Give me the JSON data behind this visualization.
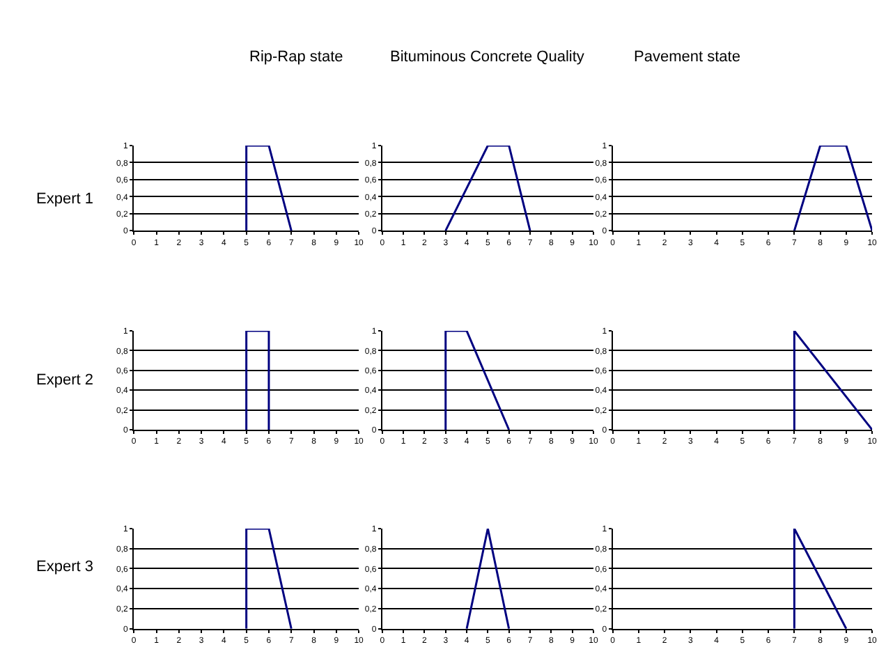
{
  "chart_data": [
    {
      "type": "line",
      "title": "Rip-Rap state",
      "ylabel": "Expert 1",
      "x": [
        5,
        5,
        6,
        7
      ],
      "values": [
        0,
        1,
        1,
        0
      ],
      "color": "#000080",
      "xlim": [
        0,
        10
      ],
      "ylim": [
        0,
        1
      ],
      "xticks": [
        0,
        1,
        2,
        3,
        4,
        5,
        6,
        7,
        8,
        9,
        10
      ],
      "yticks": [
        0,
        {
          "value": 0.2,
          "label": "0,2"
        },
        {
          "value": 0.4,
          "label": "0,4"
        },
        {
          "value": 0.6,
          "label": "0,6"
        },
        {
          "value": 0.8,
          "label": "0,8"
        },
        1
      ],
      "grid": "y",
      "marker": "none",
      "line_style": "solid"
    },
    {
      "type": "line",
      "title": "Bituminous Concrete Quality",
      "x": [
        3,
        5,
        6,
        7
      ],
      "values": [
        0,
        1,
        1,
        0
      ],
      "color": "#000080",
      "xlim": [
        0,
        10
      ],
      "ylim": [
        0,
        1
      ],
      "xticks": [
        0,
        1,
        2,
        3,
        4,
        5,
        6,
        7,
        8,
        9,
        10
      ],
      "yticks": [
        0,
        {
          "value": 0.2,
          "label": "0,2"
        },
        {
          "value": 0.4,
          "label": "0,4"
        },
        {
          "value": 0.6,
          "label": "0,6"
        },
        {
          "value": 0.8,
          "label": "0,8"
        },
        1
      ],
      "grid": "y",
      "marker": "none",
      "line_style": "solid"
    },
    {
      "type": "line",
      "title": "Pavement state",
      "x": [
        7,
        8,
        9,
        10
      ],
      "values": [
        0,
        1,
        1,
        0
      ],
      "color": "#000080",
      "xlim": [
        0,
        10
      ],
      "ylim": [
        0,
        1
      ],
      "xticks": [
        0,
        1,
        2,
        3,
        4,
        5,
        6,
        7,
        8,
        9,
        10
      ],
      "yticks": [
        0,
        {
          "value": 0.2,
          "label": "0,2"
        },
        {
          "value": 0.4,
          "label": "0,4"
        },
        {
          "value": 0.6,
          "label": "0,6"
        },
        {
          "value": 0.8,
          "label": "0,8"
        },
        1
      ],
      "grid": "y",
      "marker": "none",
      "line_style": "solid"
    },
    {
      "type": "line",
      "ylabel": "Expert 2",
      "x": [
        5,
        5,
        6,
        6
      ],
      "values": [
        0,
        1,
        1,
        0
      ],
      "color": "#000080",
      "xlim": [
        0,
        10
      ],
      "ylim": [
        0,
        1
      ],
      "xticks": [
        0,
        1,
        2,
        3,
        4,
        5,
        6,
        7,
        8,
        9,
        10
      ],
      "yticks": [
        0,
        {
          "value": 0.2,
          "label": "0,2"
        },
        {
          "value": 0.4,
          "label": "0,4"
        },
        {
          "value": 0.6,
          "label": "0,6"
        },
        {
          "value": 0.8,
          "label": "0,8"
        },
        1
      ],
      "grid": "y",
      "marker": "none",
      "line_style": "solid"
    },
    {
      "type": "line",
      "x": [
        3,
        3,
        4,
        6
      ],
      "values": [
        0,
        1,
        1,
        0
      ],
      "color": "#000080",
      "xlim": [
        0,
        10
      ],
      "ylim": [
        0,
        1
      ],
      "xticks": [
        0,
        1,
        2,
        3,
        4,
        5,
        6,
        7,
        8,
        9,
        10
      ],
      "yticks": [
        0,
        {
          "value": 0.2,
          "label": "0,2"
        },
        {
          "value": 0.4,
          "label": "0,4"
        },
        {
          "value": 0.6,
          "label": "0,6"
        },
        {
          "value": 0.8,
          "label": "0,8"
        },
        1
      ],
      "grid": "y",
      "marker": "none",
      "line_style": "solid"
    },
    {
      "type": "line",
      "x": [
        7,
        7,
        10
      ],
      "values": [
        0,
        1,
        0
      ],
      "color": "#000080",
      "xlim": [
        0,
        10
      ],
      "ylim": [
        0,
        1
      ],
      "xticks": [
        0,
        1,
        2,
        3,
        4,
        5,
        6,
        7,
        8,
        9,
        10
      ],
      "yticks": [
        0,
        {
          "value": 0.2,
          "label": "0,2"
        },
        {
          "value": 0.4,
          "label": "0,4"
        },
        {
          "value": 0.6,
          "label": "0,6"
        },
        {
          "value": 0.8,
          "label": "0,8"
        },
        1
      ],
      "grid": "y",
      "marker": "none",
      "line_style": "solid"
    },
    {
      "type": "line",
      "ylabel": "Expert 3",
      "x": [
        5,
        5,
        6,
        7
      ],
      "values": [
        0,
        1,
        1,
        0
      ],
      "color": "#000080",
      "xlim": [
        0,
        10
      ],
      "ylim": [
        0,
        1
      ],
      "xticks": [
        0,
        1,
        2,
        3,
        4,
        5,
        6,
        7,
        8,
        9,
        10
      ],
      "yticks": [
        0,
        {
          "value": 0.2,
          "label": "0,2"
        },
        {
          "value": 0.4,
          "label": "0,4"
        },
        {
          "value": 0.6,
          "label": "0,6"
        },
        {
          "value": 0.8,
          "label": "0,8"
        },
        1
      ],
      "grid": "y",
      "marker": "none",
      "line_style": "solid"
    },
    {
      "type": "line",
      "x": [
        4,
        5,
        6
      ],
      "values": [
        0,
        1,
        0
      ],
      "color": "#000080",
      "xlim": [
        0,
        10
      ],
      "ylim": [
        0,
        1
      ],
      "xticks": [
        0,
        1,
        2,
        3,
        4,
        5,
        6,
        7,
        8,
        9,
        10
      ],
      "yticks": [
        0,
        {
          "value": 0.2,
          "label": "0,2"
        },
        {
          "value": 0.4,
          "label": "0,4"
        },
        {
          "value": 0.6,
          "label": "0,6"
        },
        {
          "value": 0.8,
          "label": "0,8"
        },
        1
      ],
      "grid": "y",
      "marker": "none",
      "line_style": "solid"
    },
    {
      "type": "line",
      "x": [
        7,
        7,
        9
      ],
      "values": [
        0,
        1,
        0
      ],
      "color": "#000080",
      "xlim": [
        0,
        10
      ],
      "ylim": [
        0,
        1
      ],
      "xticks": [
        0,
        1,
        2,
        3,
        4,
        5,
        6,
        7,
        8,
        9,
        10
      ],
      "yticks": [
        0,
        {
          "value": 0.2,
          "label": "0,2"
        },
        {
          "value": 0.4,
          "label": "0,4"
        },
        {
          "value": 0.6,
          "label": "0,6"
        },
        {
          "value": 0.8,
          "label": "0,8"
        },
        1
      ],
      "grid": "y",
      "marker": "none",
      "line_style": "solid"
    }
  ]
}
